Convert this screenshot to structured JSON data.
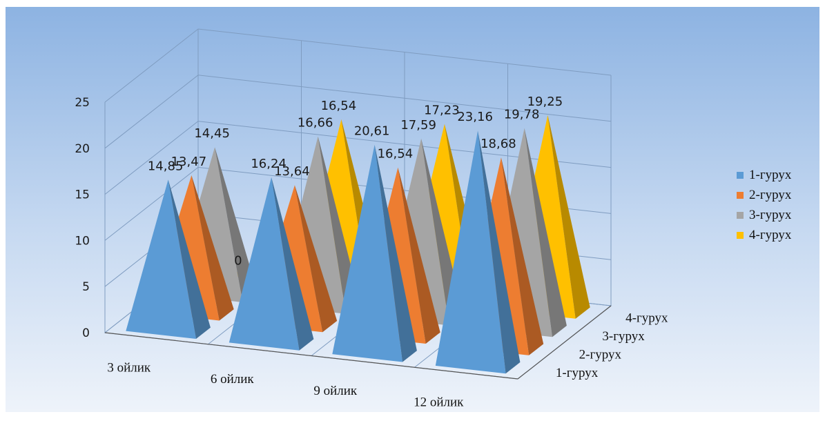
{
  "chart_data": {
    "type": "bar",
    "style": "3d-pyramid",
    "categories": [
      "3 ойлик",
      "6 ойлик",
      "9 ойлик",
      "12 ойлик"
    ],
    "series": [
      {
        "name": "1-гурух",
        "color": "#5b9bd5",
        "values": [
          14.85,
          16.24,
          20.61,
          23.16
        ],
        "labels": [
          "14,85",
          "16,24",
          "20,61",
          "23,16"
        ]
      },
      {
        "name": "2-гурух",
        "color": "#ed7d31",
        "values": [
          13.47,
          13.64,
          16.54,
          18.68
        ],
        "labels": [
          "13,47",
          "13,64",
          "16,54",
          "18,68"
        ]
      },
      {
        "name": "3-гурух",
        "color": "#a5a5a5",
        "values": [
          14.45,
          16.66,
          17.59,
          19.78
        ],
        "labels": [
          "14,45",
          "16,66",
          "17,59",
          "19,78"
        ]
      },
      {
        "name": "4-гурух",
        "color": "#ffc000",
        "values": [
          0,
          16.54,
          17.23,
          19.25
        ],
        "labels": [
          "0",
          "16,54",
          "17,23",
          "19,25"
        ]
      }
    ],
    "depth_labels": [
      "1-гурух",
      "2-гурух",
      "3-гурух",
      "4-гурух"
    ],
    "yticks": [
      "0",
      "5",
      "10",
      "15",
      "20",
      "25"
    ],
    "ylim": [
      0,
      25
    ],
    "grid": true,
    "legend_position": "right"
  }
}
